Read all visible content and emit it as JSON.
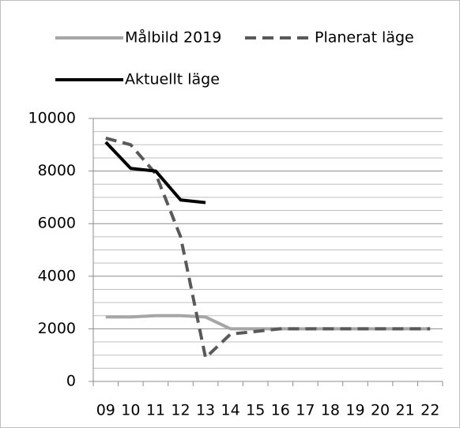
{
  "chart_data": {
    "type": "line",
    "categories": [
      "09",
      "10",
      "11",
      "12",
      "13",
      "14",
      "15",
      "16",
      "17",
      "18",
      "19",
      "20",
      "21",
      "22"
    ],
    "series": [
      {
        "name": "Målbild 2019",
        "color": "#a6a6a6",
        "dash": false,
        "values": [
          2450,
          2450,
          2500,
          2500,
          2450,
          2000,
          2000,
          2000,
          2000,
          2000,
          2000,
          2000,
          2000,
          2000
        ]
      },
      {
        "name": "Planerat läge",
        "color": "#595959",
        "dash": true,
        "values": [
          9250,
          9000,
          7900,
          5500,
          900,
          1800,
          1900,
          2000,
          2000,
          2000,
          2000,
          2000,
          2000,
          2000
        ]
      },
      {
        "name": "Aktuellt läge",
        "color": "#000000",
        "dash": false,
        "values": [
          9100,
          8100,
          8000,
          6900,
          6800,
          null,
          null,
          null,
          null,
          null,
          null,
          null,
          null,
          null
        ]
      }
    ],
    "ylim": [
      0,
      10000
    ],
    "yticks": [
      0,
      2000,
      4000,
      6000,
      8000,
      10000
    ],
    "y_minor_ticks": [
      500,
      1000,
      1500,
      2500,
      3000,
      3500,
      4500,
      5000,
      5500,
      6500,
      7000,
      7500,
      8500,
      9000,
      9500
    ],
    "grid": true,
    "legend": "top"
  }
}
